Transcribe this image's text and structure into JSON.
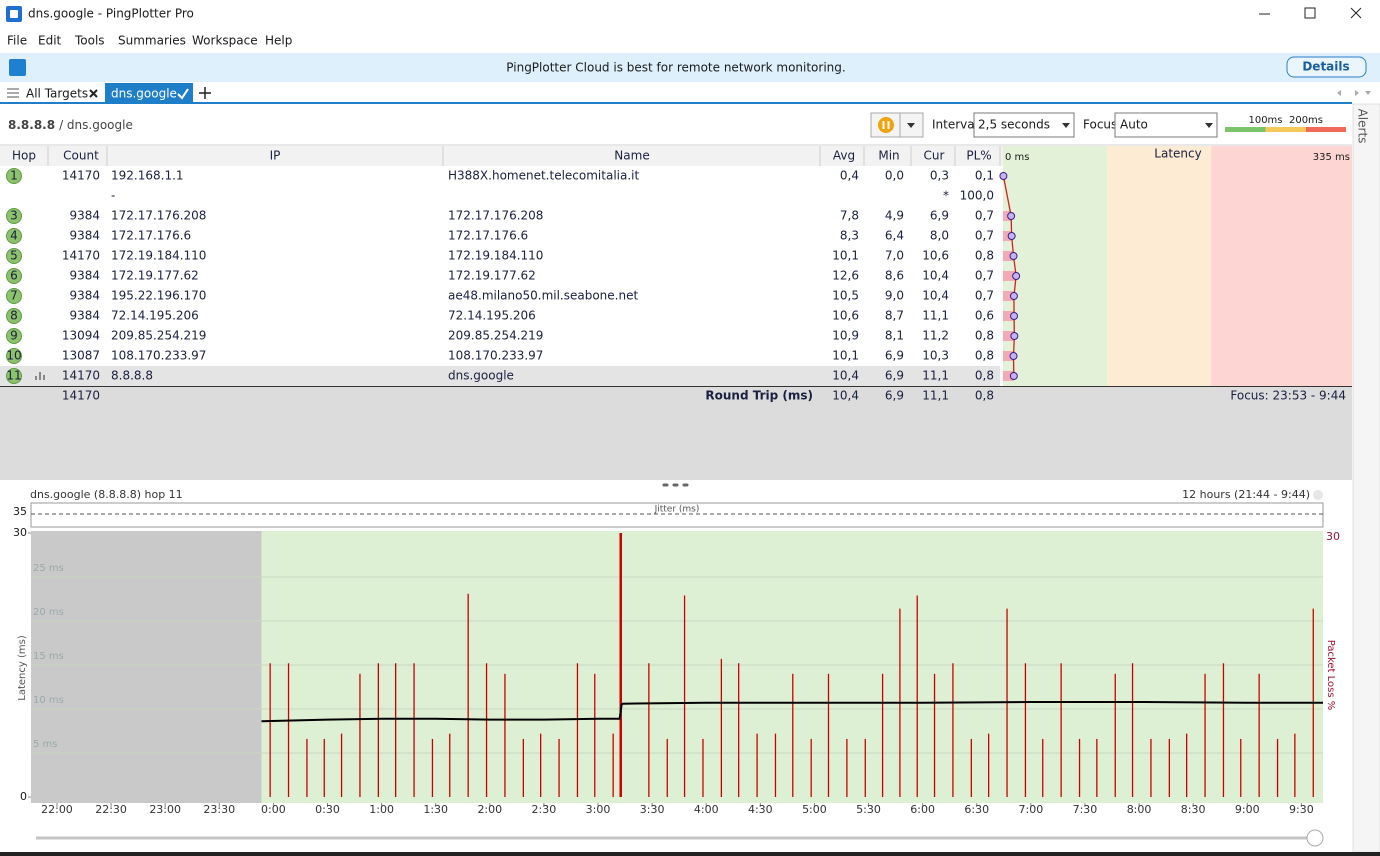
{
  "window": {
    "title": "dns.google - PingPlotter Pro"
  },
  "menu": [
    "File",
    "Edit",
    "Tools",
    "Summaries",
    "Workspace",
    "Help"
  ],
  "banner": {
    "text": "PingPlotter Cloud is best for remote network monitoring.",
    "button": "Details"
  },
  "tabs": [
    "All Targets",
    "dns.google"
  ],
  "toolbar": {
    "target": "8.8.8.8",
    "target_name": "/ dns.google",
    "interval_label": "Interval",
    "interval": "2,5 seconds",
    "focus_label": "Focus",
    "focus": "Auto",
    "thresholds": [
      {
        "value": 100,
        "label": "100ms"
      },
      {
        "value": 200,
        "label": "200ms"
      }
    ]
  },
  "sidebar": {
    "alerts": "Alerts"
  },
  "table": {
    "columns": [
      "Hop",
      "Count",
      "IP",
      "Name",
      "Avg",
      "Min",
      "Cur",
      "PL%"
    ],
    "latency_header": "Latency",
    "latency_ticks": [
      {
        "value": 0,
        "label": "0 ms"
      },
      {
        "value": 335,
        "label": "335 ms"
      }
    ],
    "rows": [
      {
        "hop": 1,
        "count": 14170,
        "ip": "192.168.1.1",
        "name": "H388X.homenet.telecomitalia.it",
        "avg": "0,4",
        "min": "0,0",
        "cur": "0,3",
        "pl": "0,1"
      },
      {
        "ip": "-",
        "cur": "*",
        "pl": "100,0"
      },
      {
        "hop": 3,
        "count": 9384,
        "ip": "172.17.176.208",
        "name": "172.17.176.208",
        "avg": "7,8",
        "min": "4,9",
        "cur": "6,9",
        "pl": "0,7"
      },
      {
        "hop": 4,
        "count": 9384,
        "ip": "172.17.176.6",
        "name": "172.17.176.6",
        "avg": "8,3",
        "min": "6,4",
        "cur": "8,0",
        "pl": "0,7"
      },
      {
        "hop": 5,
        "count": 14170,
        "ip": "172.19.184.110",
        "name": "172.19.184.110",
        "avg": "10,1",
        "min": "7,0",
        "cur": "10,6",
        "pl": "0,8"
      },
      {
        "hop": 6,
        "count": 9384,
        "ip": "172.19.177.62",
        "name": "172.19.177.62",
        "avg": "12,6",
        "min": "8,6",
        "cur": "10,4",
        "pl": "0,7"
      },
      {
        "hop": 7,
        "count": 9384,
        "ip": "195.22.196.170",
        "name": "ae48.milano50.mil.seabone.net",
        "avg": "10,5",
        "min": "9,0",
        "cur": "10,4",
        "pl": "0,7"
      },
      {
        "hop": 8,
        "count": 9384,
        "ip": "72.14.195.206",
        "name": "72.14.195.206",
        "avg": "10,6",
        "min": "8,7",
        "cur": "11,1",
        "pl": "0,6"
      },
      {
        "hop": 9,
        "count": 13094,
        "ip": "209.85.254.219",
        "name": "209.85.254.219",
        "avg": "10,9",
        "min": "8,1",
        "cur": "11,2",
        "pl": "0,8"
      },
      {
        "hop": 10,
        "count": 13087,
        "ip": "108.170.233.97",
        "name": "108.170.233.97",
        "avg": "10,1",
        "min": "6,9",
        "cur": "10,3",
        "pl": "0,8"
      },
      {
        "hop": 11,
        "count": 14170,
        "ip": "8.8.8.8",
        "name": "dns.google",
        "avg": "10,4",
        "min": "6,9",
        "cur": "11,1",
        "pl": "0,8"
      }
    ],
    "footer": {
      "count": 14170,
      "label": "Round Trip (ms)",
      "avg": "10,4",
      "min": "6,9",
      "cur": "11,1",
      "pl": "0,8",
      "focus": "Focus: 23:53 - 9:44"
    }
  },
  "graph": {
    "title": "dns.google (8.8.8.8) hop 11",
    "range": "12 hours (21:44 - 9:44)",
    "jitter_label": "Jitter (ms)",
    "jitter_ticks": [
      35
    ],
    "ylabel": "Latency (ms)",
    "y2label": "Packet Loss %",
    "xlim": [
      -0.24,
      11.7
    ],
    "xticks": [
      {
        "value": 0,
        "label": "22:00"
      },
      {
        "value": 0.5,
        "label": "22:30"
      },
      {
        "value": 1,
        "label": "23:00"
      },
      {
        "value": 1.5,
        "label": "23:30"
      },
      {
        "value": 2,
        "label": "0:00"
      },
      {
        "value": 2.5,
        "label": "0:30"
      },
      {
        "value": 3,
        "label": "1:00"
      },
      {
        "value": 3.5,
        "label": "1:30"
      },
      {
        "value": 4,
        "label": "2:00"
      },
      {
        "value": 4.5,
        "label": "2:30"
      },
      {
        "value": 5,
        "label": "3:00"
      },
      {
        "value": 5.5,
        "label": "3:30"
      },
      {
        "value": 6,
        "label": "4:00"
      },
      {
        "value": 6.5,
        "label": "4:30"
      },
      {
        "value": 7,
        "label": "5:00"
      },
      {
        "value": 7.5,
        "label": "5:30"
      },
      {
        "value": 8,
        "label": "6:00"
      },
      {
        "value": 8.5,
        "label": "6:30"
      },
      {
        "value": 9,
        "label": "7:00"
      },
      {
        "value": 9.5,
        "label": "7:30"
      },
      {
        "value": 10,
        "label": "8:00"
      },
      {
        "value": 10.5,
        "label": "8:30"
      },
      {
        "value": 11,
        "label": "9:00"
      },
      {
        "value": 11.5,
        "label": "9:30"
      }
    ],
    "ylim": [
      0,
      30
    ],
    "yticks": [
      0,
      {
        "value": 5,
        "label": "5 ms"
      },
      {
        "value": 10,
        "label": "10 ms"
      },
      {
        "value": 15,
        "label": "15 ms"
      },
      {
        "value": 20,
        "label": "20 ms"
      },
      {
        "value": 25,
        "label": "25 ms"
      },
      30
    ],
    "y2lim": [
      0,
      30
    ],
    "y2ticks": [
      30
    ],
    "latency": {
      "color": "#000000",
      "x": [
        1.89,
        2.5,
        3.0,
        3.5,
        4.0,
        4.5,
        5.0,
        5.2,
        5.22,
        6,
        7,
        8,
        9,
        10,
        11,
        11.7
      ],
      "values": [
        8.6,
        8.8,
        8.9,
        8.9,
        8.8,
        8.8,
        8.9,
        8.9,
        10.6,
        10.7,
        10.7,
        10.7,
        10.8,
        10.8,
        10.7,
        10.7
      ]
    },
    "loss": {
      "axis": "y2",
      "color": "#cc0000",
      "x": [
        1.97,
        2.14,
        2.31,
        2.47,
        2.63,
        2.8,
        2.97,
        3.13,
        3.3,
        3.47,
        3.63,
        3.8,
        3.97,
        4.14,
        4.31,
        4.47,
        4.64,
        4.81,
        4.97,
        5.14,
        5.21,
        5.47,
        5.64,
        5.8,
        5.97,
        6.14,
        6.3,
        6.47,
        6.64,
        6.8,
        6.97,
        7.13,
        7.3,
        7.47,
        7.63,
        7.79,
        7.95,
        8.11,
        8.28,
        8.45,
        8.61,
        8.78,
        8.95,
        9.11,
        9.28,
        9.45,
        9.61,
        9.78,
        9.94,
        10.11,
        10.28,
        10.44,
        10.61,
        10.78,
        10.94,
        11.11,
        11.28,
        11.44,
        11.61
      ],
      "values": [
        15.2,
        15.2,
        6.6,
        6.6,
        7.2,
        14.0,
        15.2,
        15.2,
        15.2,
        6.6,
        7.2,
        23.1,
        15.2,
        14.0,
        6.6,
        7.2,
        6.6,
        15.2,
        14.0,
        7.2,
        30,
        15.2,
        6.6,
        22.9,
        6.6,
        15.7,
        15.2,
        7.2,
        7.2,
        14.0,
        6.6,
        14.0,
        6.6,
        6.6,
        14.0,
        21.4,
        22.9,
        14.0,
        15.2,
        6.6,
        7.2,
        21.4,
        15.2,
        6.6,
        15.2,
        6.6,
        6.6,
        14.0,
        15.2,
        6.6,
        6.6,
        7.2,
        14.0,
        15.2,
        6.6,
        14.0,
        6.6,
        7.2,
        21.4
      ]
    }
  }
}
